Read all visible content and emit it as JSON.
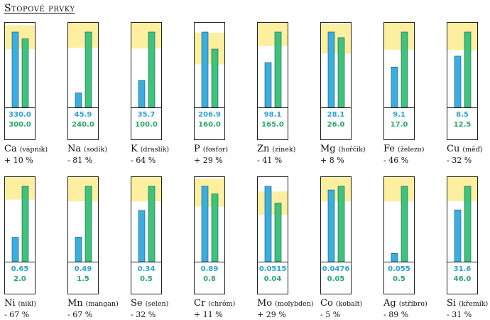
{
  "title": "Stopové prvky",
  "colors": {
    "actual": "#3aaee0",
    "target": "#3ec47a",
    "band": "#fcef9f",
    "actual_text": "#2ba1d3",
    "target_text": "#2aa76b"
  },
  "chart_data": {
    "type": "bar",
    "title": "Stopové prvky",
    "series": [
      {
        "values_key": "actual"
      },
      {
        "values_key": "target"
      }
    ],
    "panels": [
      {
        "symbol": "Ca",
        "name": "(vápník)",
        "actual": 330.0,
        "actual_text": "330.0",
        "target": 300.0,
        "target_text": "300.0",
        "delta": "+ 10 %",
        "band": [
          255,
          360
        ]
      },
      {
        "symbol": "Na",
        "name": "(sodík)",
        "actual": 45.9,
        "actual_text": "45.9",
        "target": 240.0,
        "target_text": "240.0",
        "delta": "- 81 %",
        "band": [
          190,
          285
        ]
      },
      {
        "symbol": "K",
        "name": "(draslík)",
        "actual": 35.7,
        "actual_text": "35.7",
        "target": 100.0,
        "target_text": "100.0",
        "delta": "- 64 %",
        "band": [
          78,
          117
        ]
      },
      {
        "symbol": "P",
        "name": "(fosfor)",
        "actual": 206.9,
        "actual_text": "206.9",
        "target": 160.0,
        "target_text": "160.0",
        "delta": "+ 29 %",
        "band": [
          118,
          205
        ]
      },
      {
        "symbol": "Zn",
        "name": "(zinek)",
        "actual": 98.1,
        "actual_text": "98.1",
        "target": 165.0,
        "target_text": "165.0",
        "delta": "- 41 %",
        "band": [
          134,
          200
        ]
      },
      {
        "symbol": "Mg",
        "name": "(hořčík)",
        "actual": 28.1,
        "actual_text": "28.1",
        "target": 26.0,
        "target_text": "26.0",
        "delta": "+ 8 %",
        "band": [
          20,
          31
        ]
      },
      {
        "symbol": "Fe",
        "name": "(železo)",
        "actual": 9.1,
        "actual_text": "9.1",
        "target": 17.0,
        "target_text": "17.0",
        "delta": "- 46 %",
        "band": [
          13,
          20
        ]
      },
      {
        "symbol": "Cu",
        "name": "(měď)",
        "actual": 8.5,
        "actual_text": "8.5",
        "target": 12.5,
        "target_text": "12.5",
        "delta": "- 32 %",
        "band": [
          9.5,
          15
        ]
      },
      {
        "symbol": "Ni",
        "name": "(nikl)",
        "actual": 0.65,
        "actual_text": "0.65",
        "target": 2.0,
        "target_text": "2.0",
        "delta": "- 67 %",
        "band": [
          1.65,
          2.4
        ]
      },
      {
        "symbol": "Mn",
        "name": "(mangan)",
        "actual": 0.49,
        "actual_text": "0.49",
        "target": 1.5,
        "target_text": "1.5",
        "delta": "- 67 %",
        "band": [
          1.2,
          1.8
        ]
      },
      {
        "symbol": "Se",
        "name": "(selen)",
        "actual": 0.34,
        "actual_text": "0.34",
        "target": 0.5,
        "target_text": "0.5",
        "delta": "- 32 %",
        "band": [
          0.4,
          0.6
        ]
      },
      {
        "symbol": "Cr",
        "name": "(chróm)",
        "actual": 0.89,
        "actual_text": "0.89",
        "target": 0.8,
        "target_text": "0.8",
        "delta": "+ 11 %",
        "band": [
          0.65,
          0.98
        ]
      },
      {
        "symbol": "Mo",
        "name": "(molybden)",
        "actual": 0.0515,
        "actual_text": "0.0515",
        "target": 0.04,
        "target_text": "0.04",
        "delta": "+ 29 %",
        "band": [
          0.032,
          0.048
        ]
      },
      {
        "symbol": "Co",
        "name": "(kobalt)",
        "actual": 0.0476,
        "actual_text": "0.0476",
        "target": 0.05,
        "target_text": "0.05",
        "delta": "- 5 %",
        "band": [
          0.04,
          0.06
        ]
      },
      {
        "symbol": "Ag",
        "name": "(stříbro)",
        "actual": 0.055,
        "actual_text": "0.055",
        "target": 0.5,
        "target_text": "0.5",
        "delta": "- 89 %",
        "band": [
          0.4,
          0.6
        ]
      },
      {
        "symbol": "Si",
        "name": "(křemík)",
        "actual": 31.6,
        "actual_text": "31.6",
        "target": 46.0,
        "target_text": "46.0",
        "delta": "- 31 %",
        "band": [
          37,
          55
        ]
      }
    ]
  }
}
